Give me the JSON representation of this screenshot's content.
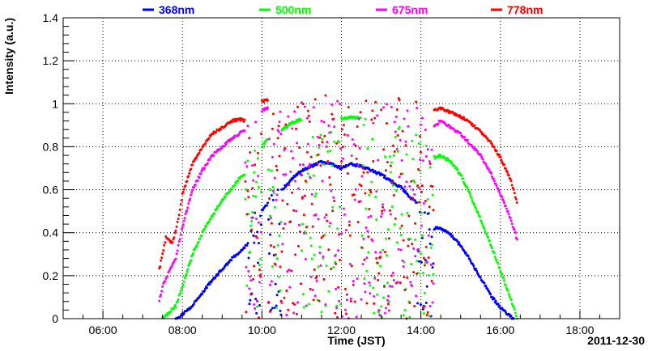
{
  "chart_data": {
    "type": "scatter",
    "xlabel": "Time (JST)",
    "ylabel": "Intensity (a.u.)",
    "date_label": "2011-12-30",
    "xlim": [
      "05:00",
      "19:00"
    ],
    "ylim": [
      0,
      1.4
    ],
    "x_ticks": [
      "06:00",
      "08:00",
      "10:00",
      "12:00",
      "14:00",
      "16:00",
      "18:00"
    ],
    "y_ticks": [
      "0",
      "0.2",
      "0.4",
      "0.6",
      "0.8",
      "1",
      "1.2",
      "1.4"
    ],
    "grid": true,
    "legend_position": "top",
    "series": [
      {
        "name": "368nm",
        "color": "#0000ff",
        "points": [
          [
            "07:50",
            0.0
          ],
          [
            "08:00",
            0.02
          ],
          [
            "08:15",
            0.06
          ],
          [
            "08:30",
            0.12
          ],
          [
            "08:45",
            0.18
          ],
          [
            "09:00",
            0.23
          ],
          [
            "09:15",
            0.28
          ],
          [
            "09:30",
            0.32
          ],
          [
            "09:40",
            0.35
          ],
          [
            "10:00",
            0.5
          ],
          [
            "10:10",
            0.54
          ],
          [
            "10:30",
            0.6
          ],
          [
            "10:45",
            0.65
          ],
          [
            "11:00",
            0.69
          ],
          [
            "11:15",
            0.71
          ],
          [
            "11:30",
            0.73
          ],
          [
            "11:45",
            0.72
          ],
          [
            "12:00",
            0.7
          ],
          [
            "12:15",
            0.72
          ],
          [
            "12:30",
            0.71
          ],
          [
            "12:45",
            0.69
          ],
          [
            "13:00",
            0.67
          ],
          [
            "13:15",
            0.64
          ],
          [
            "13:30",
            0.61
          ],
          [
            "13:45",
            0.56
          ],
          [
            "13:55",
            0.54
          ],
          [
            "14:20",
            0.42
          ],
          [
            "14:30",
            0.42
          ],
          [
            "14:45",
            0.39
          ],
          [
            "15:00",
            0.34
          ],
          [
            "15:15",
            0.27
          ],
          [
            "15:30",
            0.19
          ],
          [
            "15:45",
            0.11
          ],
          [
            "16:00",
            0.05
          ],
          [
            "16:15",
            0.01
          ],
          [
            "16:20",
            0.0
          ]
        ]
      },
      {
        "name": "500nm",
        "color": "#00ff00",
        "points": [
          [
            "07:30",
            0.0
          ],
          [
            "07:40",
            0.03
          ],
          [
            "07:50",
            0.06
          ],
          [
            "08:00",
            0.15
          ],
          [
            "08:15",
            0.3
          ],
          [
            "08:30",
            0.4
          ],
          [
            "08:45",
            0.48
          ],
          [
            "09:00",
            0.55
          ],
          [
            "09:15",
            0.61
          ],
          [
            "09:25",
            0.65
          ],
          [
            "09:35",
            0.67
          ],
          [
            "10:00",
            0.8
          ],
          [
            "10:10",
            0.84
          ],
          [
            "10:30",
            0.88
          ],
          [
            "10:45",
            0.91
          ],
          [
            "11:00",
            0.93
          ],
          [
            "11:30",
            0.95
          ],
          [
            "12:00",
            0.93
          ],
          [
            "12:15",
            0.94
          ],
          [
            "12:30",
            0.93
          ],
          [
            "13:00",
            0.91
          ],
          [
            "13:30",
            0.88
          ],
          [
            "13:55",
            0.83
          ],
          [
            "14:20",
            0.75
          ],
          [
            "14:30",
            0.76
          ],
          [
            "14:45",
            0.73
          ],
          [
            "15:00",
            0.67
          ],
          [
            "15:15",
            0.57
          ],
          [
            "15:30",
            0.46
          ],
          [
            "15:45",
            0.35
          ],
          [
            "16:00",
            0.22
          ],
          [
            "16:15",
            0.1
          ],
          [
            "16:25",
            0.0
          ]
        ]
      },
      {
        "name": "675nm",
        "color": "#ff00ff",
        "points": [
          [
            "07:25",
            0.08
          ],
          [
            "07:30",
            0.15
          ],
          [
            "07:40",
            0.22
          ],
          [
            "07:50",
            0.28
          ],
          [
            "08:00",
            0.43
          ],
          [
            "08:15",
            0.6
          ],
          [
            "08:30",
            0.69
          ],
          [
            "08:45",
            0.76
          ],
          [
            "09:00",
            0.8
          ],
          [
            "09:15",
            0.84
          ],
          [
            "09:25",
            0.86
          ],
          [
            "09:35",
            0.88
          ],
          [
            "10:00",
            0.97
          ],
          [
            "10:10",
            0.98
          ],
          [
            "10:30",
            1.0
          ],
          [
            "11:00",
            1.01
          ],
          [
            "11:30",
            1.02
          ],
          [
            "12:00",
            1.01
          ],
          [
            "12:30",
            1.01
          ],
          [
            "13:00",
            1.0
          ],
          [
            "13:30",
            0.99
          ],
          [
            "13:55",
            0.97
          ],
          [
            "14:20",
            0.9
          ],
          [
            "14:30",
            0.92
          ],
          [
            "14:45",
            0.89
          ],
          [
            "15:00",
            0.86
          ],
          [
            "15:15",
            0.81
          ],
          [
            "15:30",
            0.76
          ],
          [
            "15:45",
            0.68
          ],
          [
            "16:00",
            0.58
          ],
          [
            "16:15",
            0.47
          ],
          [
            "16:25",
            0.37
          ]
        ]
      },
      {
        "name": "778nm",
        "color": "#ff0000",
        "points": [
          [
            "07:25",
            0.23
          ],
          [
            "07:30",
            0.3
          ],
          [
            "07:35",
            0.38
          ],
          [
            "07:45",
            0.35
          ],
          [
            "07:55",
            0.48
          ],
          [
            "08:00",
            0.58
          ],
          [
            "08:15",
            0.72
          ],
          [
            "08:30",
            0.8
          ],
          [
            "08:45",
            0.86
          ],
          [
            "09:00",
            0.89
          ],
          [
            "09:15",
            0.92
          ],
          [
            "09:25",
            0.93
          ],
          [
            "09:35",
            0.92
          ],
          [
            "10:00",
            1.01
          ],
          [
            "10:10",
            1.02
          ],
          [
            "10:30",
            1.03
          ],
          [
            "11:00",
            1.04
          ],
          [
            "11:30",
            1.05
          ],
          [
            "12:00",
            1.04
          ],
          [
            "12:30",
            1.04
          ],
          [
            "13:00",
            1.03
          ],
          [
            "13:30",
            1.02
          ],
          [
            "13:55",
            1.0
          ],
          [
            "14:20",
            0.97
          ],
          [
            "14:30",
            0.98
          ],
          [
            "14:45",
            0.96
          ],
          [
            "15:00",
            0.94
          ],
          [
            "15:15",
            0.91
          ],
          [
            "15:30",
            0.87
          ],
          [
            "15:45",
            0.82
          ],
          [
            "16:00",
            0.75
          ],
          [
            "16:15",
            0.65
          ],
          [
            "16:25",
            0.54
          ]
        ]
      }
    ]
  }
}
